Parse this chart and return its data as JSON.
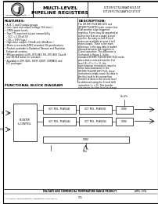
{
  "title_left": "MULTI-LEVEL\nPIPELINE REGISTERS",
  "title_right": "IDT29FCT520BATSO/1ST\nIDT29FCT524ATSO/1T/1T",
  "logo_text": "Integrated Device Technology, Inc.",
  "features_title": "FEATURES:",
  "features": [
    "A, B, C and D output groups",
    "Less input and output/voltage (Vih max.)",
    "CMOS power levels",
    "True TTL input and output compatibility",
    "  – VCC = 5.0V±0.5V",
    "  – VIL = 0.8V (typ.)",
    "High-drive outputs (16mA sink 48mA/src.)",
    "Meets or exceeds JEDEC standard 18 specifications",
    "Product available in Radiation Tolerant and Radiation",
    "  Enhanced versions",
    "Military product-to-MIL-STD-883, MIL-STD-883 Class B",
    "  and 38,544 latest rev versions",
    "Available in DIP, SOIC, SSOP, QSOP, CERPACK and",
    "  LCC packages"
  ],
  "desc_title": "DESCRIPTION:",
  "description": "The IDT29FCT5241B1C1D1 and IDT29FCT521BTSO each contain four 8-bit positive edge-triggered registers. These may be operated as 4-level tier B or as a single 4-level pipeline. As many as four 8-level states are available at most 4 to 6 states output. There is the main difference in the way data is loaded inbound between the registers in 2-level operation. The difference is illustrated in Figure 1. In the standard IDT29FCT520/IDT29FCT524 mode when data is entered into the first level (B = D = 1 = 1), the asynchronous instructions travel to move data downward. In the IDT29FCT524/IDT29FCT521, these instructions simply cause the data in the first level to be overwritten. Transfer of data to the second level is addressed using the 4-level shift instruction (= = 0). This transfer also causes the first level to change. In other port A-B is for hold.",
  "fbd_title": "FUNCTIONAL BLOCK DIAGRAM",
  "bg_color": "#ffffff",
  "border_color": "#000000",
  "footer_text1": "MILITARY AND COMMERCIAL TEMPERATURE RANGE PRODUCT",
  "footer_text2": "APRIL 1994",
  "page_num": "515"
}
